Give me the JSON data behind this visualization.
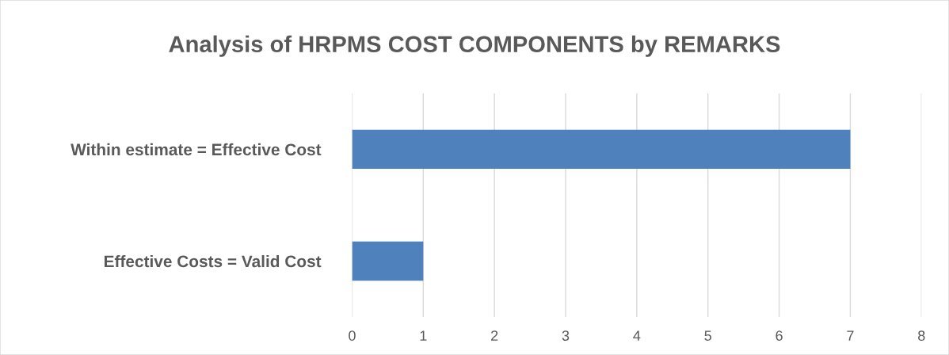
{
  "chart_data": {
    "type": "bar",
    "orientation": "horizontal",
    "title": "Analysis of HRPMS COST COMPONENTS by REMARKS",
    "categories": [
      "Within estimate = Effective Cost",
      "Effective Costs = Valid Cost"
    ],
    "values": [
      7,
      1
    ],
    "color": "#4f81bd",
    "xlim": [
      0,
      8
    ],
    "xticks": [
      0,
      1,
      2,
      3,
      4,
      5,
      6,
      7,
      8
    ],
    "grid": "x",
    "legend": false
  }
}
